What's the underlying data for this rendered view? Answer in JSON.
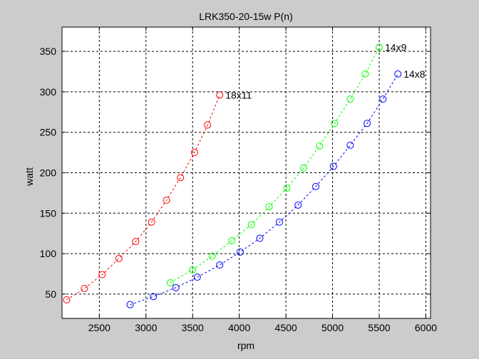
{
  "chart_data": {
    "type": "line",
    "title": "LRK350-20-15w  P(n)",
    "xlabel": "rpm",
    "ylabel": "watt",
    "xlim": [
      2100,
      6050
    ],
    "ylim": [
      20,
      380
    ],
    "xticks": [
      2500,
      3000,
      3500,
      4000,
      4500,
      5000,
      5500,
      6000
    ],
    "yticks": [
      50,
      100,
      150,
      200,
      250,
      300,
      350
    ],
    "grid": true,
    "marker": "circle",
    "line_style": "dashed",
    "series": [
      {
        "name": "18x11",
        "color": "#ff0000",
        "x": [
          2150,
          2340,
          2530,
          2710,
          2890,
          3060,
          3220,
          3370,
          3520,
          3660,
          3790
        ],
        "y": [
          43,
          57,
          74,
          94,
          115,
          139,
          166,
          194,
          225,
          259,
          296
        ]
      },
      {
        "name": "14x9",
        "color": "#00ff00",
        "x": [
          3260,
          3500,
          3710,
          3920,
          4130,
          4320,
          4510,
          4690,
          4860,
          5020,
          5190,
          5350,
          5500
        ],
        "y": [
          64,
          80,
          97,
          116,
          136,
          158,
          181,
          206,
          233,
          261,
          291,
          322,
          355
        ]
      },
      {
        "name": "14x8",
        "color": "#0000ff",
        "x": [
          2830,
          3080,
          3320,
          3550,
          3790,
          4010,
          4220,
          4430,
          4630,
          4820,
          5010,
          5190,
          5370,
          5540,
          5700
        ],
        "y": [
          37,
          47,
          58,
          71,
          86,
          102,
          119,
          139,
          160,
          183,
          208,
          234,
          261,
          291,
          322
        ]
      }
    ]
  }
}
